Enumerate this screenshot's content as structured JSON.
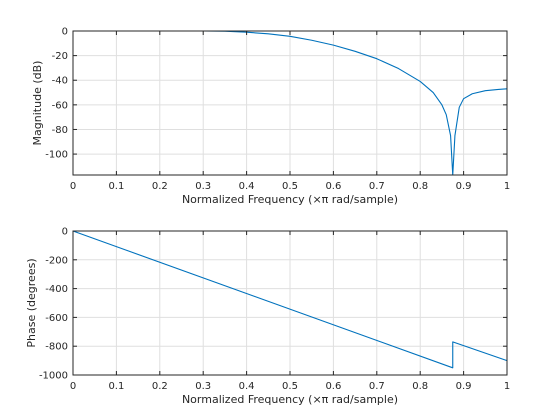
{
  "colors": {
    "line": "#0072BD",
    "grid": "#dfdfdf",
    "axes": "#262626",
    "background": "#ffffff"
  },
  "chart_data": [
    {
      "type": "line",
      "xlabel": "Normalized Frequency  (×π rad/sample)",
      "ylabel": "Magnitude (dB)",
      "xlim": [
        0,
        1
      ],
      "ylim": [
        -117,
        0
      ],
      "grid": true,
      "x_ticks": [
        "0",
        "0.1",
        "0.2",
        "0.3",
        "0.4",
        "0.5",
        "0.6",
        "0.7",
        "0.8",
        "0.9",
        "1"
      ],
      "y_ticks": [
        "0",
        "-20",
        "-40",
        "-60",
        "-80",
        "-100"
      ],
      "series": [
        {
          "x": [
            0,
            0.1,
            0.2,
            0.3,
            0.35,
            0.4,
            0.45,
            0.5,
            0.55,
            0.6,
            0.65,
            0.7,
            0.75,
            0.8,
            0.83,
            0.85,
            0.86,
            0.87,
            0.875,
            0.88,
            0.89,
            0.9,
            0.92,
            0.95,
            0.98,
            1.0
          ],
          "y": [
            0,
            0,
            0,
            0,
            -0.2,
            -1,
            -2.3,
            -4.3,
            -7.5,
            -11.5,
            -16.5,
            -22.5,
            -30.5,
            -41,
            -50,
            -60,
            -68,
            -85,
            -117,
            -85,
            -62,
            -55,
            -51,
            -48.5,
            -47.5,
            -47
          ]
        }
      ]
    },
    {
      "type": "line",
      "xlabel": "Normalized Frequency  (×π rad/sample)",
      "ylabel": "Phase (degrees)",
      "xlim": [
        0,
        1
      ],
      "ylim": [
        -1000,
        0
      ],
      "grid": true,
      "x_ticks": [
        "0",
        "0.1",
        "0.2",
        "0.3",
        "0.4",
        "0.5",
        "0.6",
        "0.7",
        "0.8",
        "0.9",
        "1"
      ],
      "y_ticks": [
        "0",
        "-200",
        "-400",
        "-600",
        "-800",
        "-1000"
      ],
      "series": [
        {
          "x": [
            0,
            0.875,
            0.875,
            1.0
          ],
          "y": [
            0,
            -950,
            -770,
            -900
          ]
        }
      ]
    }
  ]
}
